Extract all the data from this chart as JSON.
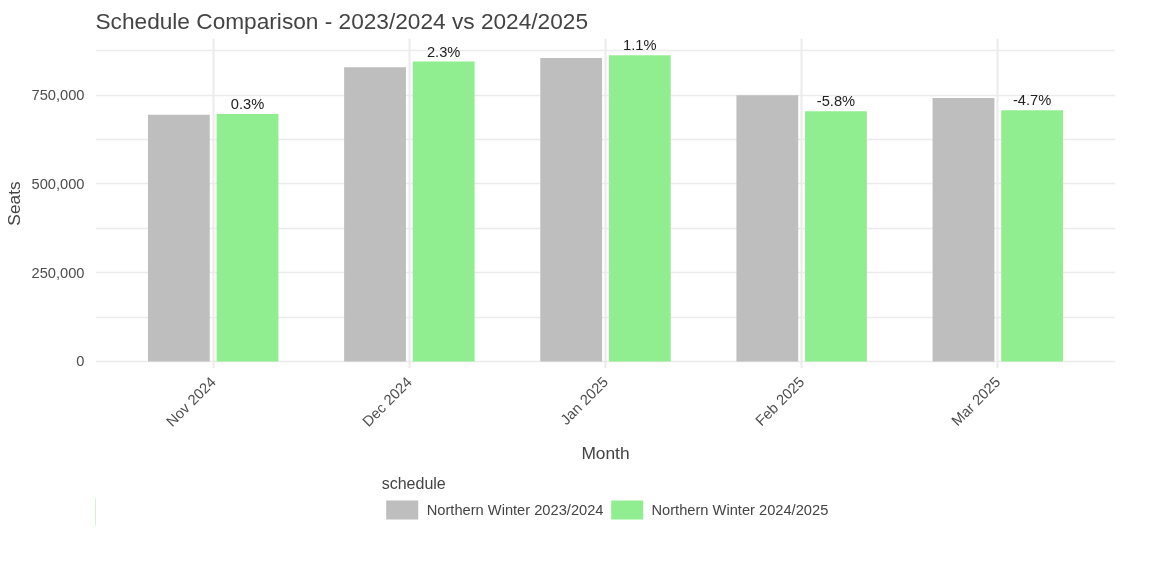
{
  "chart_data": {
    "type": "bar",
    "title": "Schedule Comparison - 2023/2024 vs 2024/2025",
    "xlabel": "Month",
    "ylabel": "Seats",
    "legend_title": "schedule",
    "categories": [
      "Nov 2024",
      "Dec 2024",
      "Jan 2025",
      "Feb 2025",
      "Mar 2025"
    ],
    "series": [
      {
        "name": "Northern Winter 2023/2024",
        "color": "#bebebe",
        "values": [
          695000,
          829000,
          855000,
          750000,
          742000
        ]
      },
      {
        "name": "Northern Winter 2024/2025",
        "color": "#90ee90",
        "values": [
          697000,
          845000,
          863000,
          705000,
          708000
        ]
      }
    ],
    "annotations": [
      {
        "text": "0.3%",
        "x": "Nov 2024",
        "y": 697000
      },
      {
        "text": "2.3%",
        "x": "Dec 2024",
        "y": 845000
      },
      {
        "text": "1.1%",
        "x": "Jan 2025",
        "y": 863000
      },
      {
        "text": "-5.8%",
        "x": "Feb 2025",
        "y": 705000
      },
      {
        "text": "-4.7%",
        "x": "Mar 2025",
        "y": 708000
      }
    ],
    "ylim": [
      -20000,
      910000
    ],
    "yticks": [
      {
        "value": 0,
        "label": "0"
      },
      {
        "value": 125000,
        "label": null
      },
      {
        "value": 250000,
        "label": "250,000"
      },
      {
        "value": 375000,
        "label": null
      },
      {
        "value": 500000,
        "label": "500,000"
      },
      {
        "value": 625000,
        "label": null
      },
      {
        "value": 750000,
        "label": "750,000"
      },
      {
        "value": 875000,
        "label": null
      }
    ],
    "grid": true,
    "legend": "bottom"
  }
}
